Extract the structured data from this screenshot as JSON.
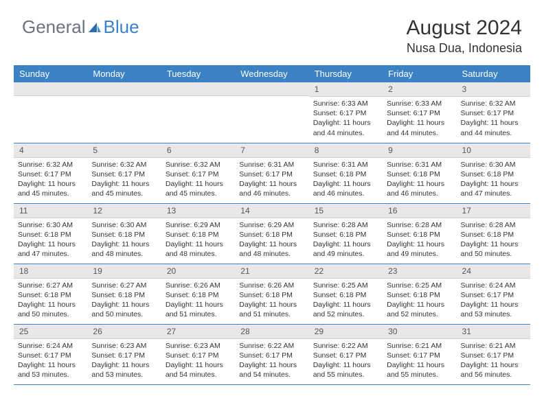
{
  "brand": {
    "text1": "General",
    "text2": "Blue"
  },
  "title": "August 2024",
  "location": "Nusa Dua, Indonesia",
  "colors": {
    "header_bg": "#3b82c4",
    "header_text": "#ffffff",
    "daynum_bg": "#e8e8e8",
    "body_text": "#333333",
    "logo_gray": "#6b7280",
    "logo_blue": "#3b82c4"
  },
  "day_headers": [
    "Sunday",
    "Monday",
    "Tuesday",
    "Wednesday",
    "Thursday",
    "Friday",
    "Saturday"
  ],
  "weeks": [
    [
      null,
      null,
      null,
      null,
      {
        "n": "1",
        "sr": "6:33 AM",
        "ss": "6:17 PM",
        "dl": "11 hours and 44 minutes."
      },
      {
        "n": "2",
        "sr": "6:33 AM",
        "ss": "6:17 PM",
        "dl": "11 hours and 44 minutes."
      },
      {
        "n": "3",
        "sr": "6:32 AM",
        "ss": "6:17 PM",
        "dl": "11 hours and 44 minutes."
      }
    ],
    [
      {
        "n": "4",
        "sr": "6:32 AM",
        "ss": "6:17 PM",
        "dl": "11 hours and 45 minutes."
      },
      {
        "n": "5",
        "sr": "6:32 AM",
        "ss": "6:17 PM",
        "dl": "11 hours and 45 minutes."
      },
      {
        "n": "6",
        "sr": "6:32 AM",
        "ss": "6:17 PM",
        "dl": "11 hours and 45 minutes."
      },
      {
        "n": "7",
        "sr": "6:31 AM",
        "ss": "6:17 PM",
        "dl": "11 hours and 46 minutes."
      },
      {
        "n": "8",
        "sr": "6:31 AM",
        "ss": "6:18 PM",
        "dl": "11 hours and 46 minutes."
      },
      {
        "n": "9",
        "sr": "6:31 AM",
        "ss": "6:18 PM",
        "dl": "11 hours and 46 minutes."
      },
      {
        "n": "10",
        "sr": "6:30 AM",
        "ss": "6:18 PM",
        "dl": "11 hours and 47 minutes."
      }
    ],
    [
      {
        "n": "11",
        "sr": "6:30 AM",
        "ss": "6:18 PM",
        "dl": "11 hours and 47 minutes."
      },
      {
        "n": "12",
        "sr": "6:30 AM",
        "ss": "6:18 PM",
        "dl": "11 hours and 48 minutes."
      },
      {
        "n": "13",
        "sr": "6:29 AM",
        "ss": "6:18 PM",
        "dl": "11 hours and 48 minutes."
      },
      {
        "n": "14",
        "sr": "6:29 AM",
        "ss": "6:18 PM",
        "dl": "11 hours and 48 minutes."
      },
      {
        "n": "15",
        "sr": "6:28 AM",
        "ss": "6:18 PM",
        "dl": "11 hours and 49 minutes."
      },
      {
        "n": "16",
        "sr": "6:28 AM",
        "ss": "6:18 PM",
        "dl": "11 hours and 49 minutes."
      },
      {
        "n": "17",
        "sr": "6:28 AM",
        "ss": "6:18 PM",
        "dl": "11 hours and 50 minutes."
      }
    ],
    [
      {
        "n": "18",
        "sr": "6:27 AM",
        "ss": "6:18 PM",
        "dl": "11 hours and 50 minutes."
      },
      {
        "n": "19",
        "sr": "6:27 AM",
        "ss": "6:18 PM",
        "dl": "11 hours and 50 minutes."
      },
      {
        "n": "20",
        "sr": "6:26 AM",
        "ss": "6:18 PM",
        "dl": "11 hours and 51 minutes."
      },
      {
        "n": "21",
        "sr": "6:26 AM",
        "ss": "6:18 PM",
        "dl": "11 hours and 51 minutes."
      },
      {
        "n": "22",
        "sr": "6:25 AM",
        "ss": "6:18 PM",
        "dl": "11 hours and 52 minutes."
      },
      {
        "n": "23",
        "sr": "6:25 AM",
        "ss": "6:18 PM",
        "dl": "11 hours and 52 minutes."
      },
      {
        "n": "24",
        "sr": "6:24 AM",
        "ss": "6:17 PM",
        "dl": "11 hours and 53 minutes."
      }
    ],
    [
      {
        "n": "25",
        "sr": "6:24 AM",
        "ss": "6:17 PM",
        "dl": "11 hours and 53 minutes."
      },
      {
        "n": "26",
        "sr": "6:23 AM",
        "ss": "6:17 PM",
        "dl": "11 hours and 53 minutes."
      },
      {
        "n": "27",
        "sr": "6:23 AM",
        "ss": "6:17 PM",
        "dl": "11 hours and 54 minutes."
      },
      {
        "n": "28",
        "sr": "6:22 AM",
        "ss": "6:17 PM",
        "dl": "11 hours and 54 minutes."
      },
      {
        "n": "29",
        "sr": "6:22 AM",
        "ss": "6:17 PM",
        "dl": "11 hours and 55 minutes."
      },
      {
        "n": "30",
        "sr": "6:21 AM",
        "ss": "6:17 PM",
        "dl": "11 hours and 55 minutes."
      },
      {
        "n": "31",
        "sr": "6:21 AM",
        "ss": "6:17 PM",
        "dl": "11 hours and 56 minutes."
      }
    ]
  ],
  "labels": {
    "sunrise": "Sunrise: ",
    "sunset": "Sunset: ",
    "daylight": "Daylight: "
  }
}
